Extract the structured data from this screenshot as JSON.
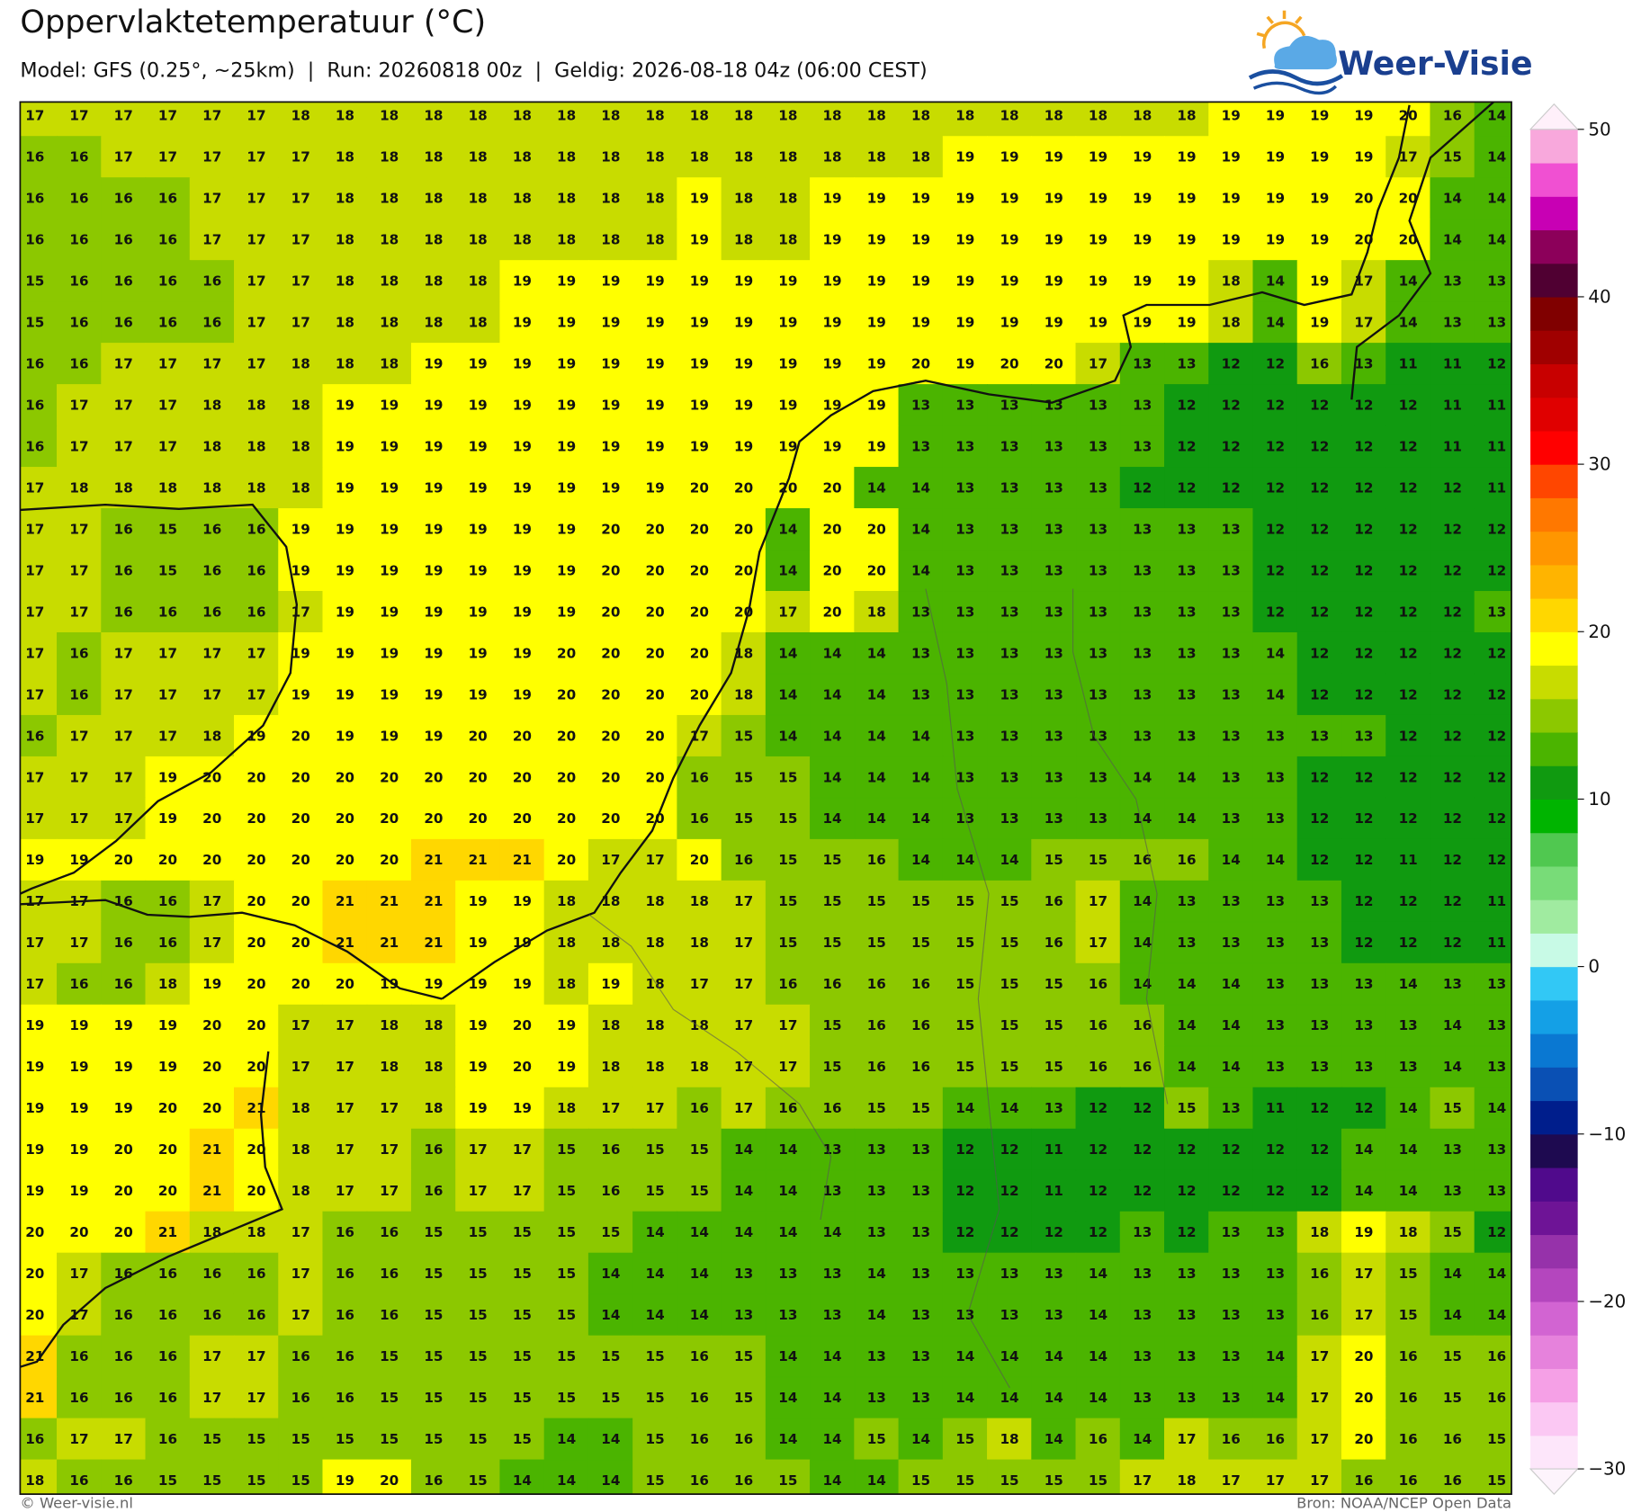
{
  "header": {
    "title": "Oppervlaktetemperatuur (°C)",
    "subtitle": "Model: GFS (0.25°, ~25km)  |  Run: 20260818 00z  |  Geldig: 2026-08-18 04z (06:00 CEST)",
    "logo": "Weer-Visie"
  },
  "map": {
    "rows": [
      [
        17,
        17,
        17,
        17,
        17,
        17,
        18,
        18,
        18,
        18,
        18,
        18,
        18,
        18,
        18,
        18,
        18,
        18,
        18,
        18,
        18,
        18,
        18,
        18,
        18,
        18,
        18,
        19,
        19,
        19,
        19,
        20,
        16,
        14
      ],
      [
        16,
        16,
        17,
        17,
        17,
        17,
        17,
        18,
        18,
        18,
        18,
        18,
        18,
        18,
        18,
        18,
        18,
        18,
        18,
        18,
        18,
        19,
        19,
        19,
        19,
        19,
        19,
        19,
        19,
        19,
        19,
        17,
        15,
        14
      ],
      [
        16,
        16,
        16,
        16,
        17,
        17,
        17,
        18,
        18,
        18,
        18,
        18,
        18,
        18,
        18,
        19,
        18,
        18,
        19,
        19,
        19,
        19,
        19,
        19,
        19,
        19,
        19,
        19,
        19,
        19,
        20,
        20,
        14,
        14
      ],
      [
        16,
        16,
        16,
        16,
        17,
        17,
        17,
        18,
        18,
        18,
        18,
        18,
        18,
        18,
        18,
        19,
        18,
        18,
        19,
        19,
        19,
        19,
        19,
        19,
        19,
        19,
        19,
        19,
        19,
        19,
        20,
        20,
        14,
        14
      ],
      [
        15,
        16,
        16,
        16,
        16,
        17,
        17,
        18,
        18,
        18,
        18,
        19,
        19,
        19,
        19,
        19,
        19,
        19,
        19,
        19,
        19,
        19,
        19,
        19,
        19,
        19,
        19,
        18,
        14,
        19,
        17,
        14,
        13,
        13
      ],
      [
        15,
        16,
        16,
        16,
        16,
        17,
        17,
        18,
        18,
        18,
        18,
        19,
        19,
        19,
        19,
        19,
        19,
        19,
        19,
        19,
        19,
        19,
        19,
        19,
        19,
        19,
        19,
        18,
        14,
        19,
        17,
        14,
        13,
        13
      ],
      [
        16,
        16,
        17,
        17,
        17,
        17,
        18,
        18,
        18,
        19,
        19,
        19,
        19,
        19,
        19,
        19,
        19,
        19,
        19,
        19,
        20,
        19,
        20,
        20,
        17,
        13,
        13,
        12,
        12,
        16,
        13,
        11,
        11,
        12
      ],
      [
        16,
        17,
        17,
        17,
        18,
        18,
        18,
        19,
        19,
        19,
        19,
        19,
        19,
        19,
        19,
        19,
        19,
        19,
        19,
        19,
        13,
        13,
        13,
        13,
        13,
        13,
        12,
        12,
        12,
        12,
        12,
        12,
        11,
        11
      ],
      [
        16,
        17,
        17,
        17,
        18,
        18,
        18,
        19,
        19,
        19,
        19,
        19,
        19,
        19,
        19,
        19,
        19,
        19,
        19,
        19,
        13,
        13,
        13,
        13,
        13,
        13,
        12,
        12,
        12,
        12,
        12,
        12,
        11,
        11
      ],
      [
        17,
        18,
        18,
        18,
        18,
        18,
        18,
        19,
        19,
        19,
        19,
        19,
        19,
        19,
        19,
        20,
        20,
        20,
        20,
        14,
        14,
        13,
        13,
        13,
        13,
        12,
        12,
        12,
        12,
        12,
        12,
        12,
        12,
        11
      ],
      [
        17,
        17,
        16,
        15,
        16,
        16,
        19,
        19,
        19,
        19,
        19,
        19,
        19,
        20,
        20,
        20,
        20,
        14,
        20,
        20,
        14,
        13,
        13,
        13,
        13,
        13,
        13,
        13,
        12,
        12,
        12,
        12,
        12,
        12
      ],
      [
        17,
        17,
        16,
        15,
        16,
        16,
        19,
        19,
        19,
        19,
        19,
        19,
        19,
        20,
        20,
        20,
        20,
        14,
        20,
        20,
        14,
        13,
        13,
        13,
        13,
        13,
        13,
        13,
        12,
        12,
        12,
        12,
        12,
        12
      ],
      [
        17,
        17,
        16,
        16,
        16,
        16,
        17,
        19,
        19,
        19,
        19,
        19,
        19,
        20,
        20,
        20,
        20,
        17,
        20,
        18,
        13,
        13,
        13,
        13,
        13,
        13,
        13,
        13,
        12,
        12,
        12,
        12,
        12,
        13
      ],
      [
        17,
        16,
        17,
        17,
        17,
        17,
        19,
        19,
        19,
        19,
        19,
        19,
        20,
        20,
        20,
        20,
        18,
        14,
        14,
        14,
        13,
        13,
        13,
        13,
        13,
        13,
        13,
        13,
        14,
        12,
        12,
        12,
        12,
        12
      ],
      [
        17,
        16,
        17,
        17,
        17,
        17,
        19,
        19,
        19,
        19,
        19,
        19,
        20,
        20,
        20,
        20,
        18,
        14,
        14,
        14,
        13,
        13,
        13,
        13,
        13,
        13,
        13,
        13,
        14,
        12,
        12,
        12,
        12,
        12
      ],
      [
        16,
        17,
        17,
        17,
        18,
        19,
        20,
        19,
        19,
        19,
        20,
        20,
        20,
        20,
        20,
        17,
        15,
        14,
        14,
        14,
        14,
        13,
        13,
        13,
        13,
        13,
        13,
        13,
        13,
        13,
        13,
        12,
        12,
        12
      ],
      [
        17,
        17,
        17,
        19,
        20,
        20,
        20,
        20,
        20,
        20,
        20,
        20,
        20,
        20,
        20,
        16,
        15,
        15,
        14,
        14,
        14,
        13,
        13,
        13,
        13,
        14,
        14,
        13,
        13,
        12,
        12,
        12,
        12,
        12
      ],
      [
        17,
        17,
        17,
        19,
        20,
        20,
        20,
        20,
        20,
        20,
        20,
        20,
        20,
        20,
        20,
        16,
        15,
        15,
        14,
        14,
        14,
        13,
        13,
        13,
        13,
        14,
        14,
        13,
        13,
        12,
        12,
        12,
        12,
        12
      ],
      [
        19,
        19,
        20,
        20,
        20,
        20,
        20,
        20,
        20,
        21,
        21,
        21,
        20,
        17,
        17,
        20,
        16,
        15,
        15,
        16,
        14,
        14,
        14,
        15,
        15,
        16,
        16,
        14,
        14,
        12,
        12,
        11,
        12,
        12
      ],
      [
        17,
        17,
        16,
        16,
        17,
        20,
        20,
        21,
        21,
        21,
        19,
        19,
        18,
        18,
        18,
        18,
        17,
        15,
        15,
        15,
        15,
        15,
        15,
        16,
        17,
        14,
        13,
        13,
        13,
        13,
        12,
        12,
        12,
        11
      ],
      [
        17,
        17,
        16,
        16,
        17,
        20,
        20,
        21,
        21,
        21,
        19,
        19,
        18,
        18,
        18,
        18,
        17,
        15,
        15,
        15,
        15,
        15,
        15,
        16,
        17,
        14,
        13,
        13,
        13,
        13,
        12,
        12,
        12,
        11
      ],
      [
        17,
        16,
        16,
        18,
        19,
        20,
        20,
        20,
        19,
        19,
        19,
        19,
        18,
        19,
        18,
        17,
        17,
        16,
        16,
        16,
        16,
        15,
        15,
        15,
        16,
        14,
        14,
        14,
        13,
        13,
        13,
        14,
        13,
        13
      ],
      [
        19,
        19,
        19,
        19,
        20,
        20,
        17,
        17,
        18,
        18,
        19,
        20,
        19,
        18,
        18,
        18,
        17,
        17,
        15,
        16,
        16,
        15,
        15,
        15,
        16,
        16,
        14,
        14,
        13,
        13,
        13,
        13,
        14,
        13
      ],
      [
        19,
        19,
        19,
        19,
        20,
        20,
        17,
        17,
        18,
        18,
        19,
        20,
        19,
        18,
        18,
        18,
        17,
        17,
        15,
        16,
        16,
        15,
        15,
        15,
        16,
        16,
        14,
        14,
        13,
        13,
        13,
        13,
        14,
        13
      ],
      [
        19,
        19,
        19,
        20,
        20,
        21,
        18,
        17,
        17,
        18,
        19,
        19,
        18,
        17,
        17,
        16,
        17,
        16,
        16,
        15,
        15,
        14,
        14,
        13,
        12,
        12,
        15,
        13,
        11,
        12,
        12,
        14,
        15,
        14
      ],
      [
        19,
        19,
        20,
        20,
        21,
        20,
        18,
        17,
        17,
        16,
        17,
        17,
        15,
        16,
        15,
        15,
        14,
        14,
        13,
        13,
        13,
        12,
        12,
        11,
        12,
        12,
        12,
        12,
        12,
        12,
        14,
        14,
        13,
        13
      ],
      [
        19,
        19,
        20,
        20,
        21,
        20,
        18,
        17,
        17,
        16,
        17,
        17,
        15,
        16,
        15,
        15,
        14,
        14,
        13,
        13,
        13,
        12,
        12,
        11,
        12,
        12,
        12,
        12,
        12,
        12,
        14,
        14,
        13,
        13
      ],
      [
        20,
        20,
        20,
        21,
        18,
        18,
        17,
        16,
        16,
        15,
        15,
        15,
        15,
        15,
        14,
        14,
        14,
        14,
        14,
        13,
        13,
        12,
        12,
        12,
        12,
        13,
        12,
        13,
        13,
        18,
        19,
        18,
        15,
        12
      ],
      [
        20,
        17,
        16,
        16,
        16,
        16,
        17,
        16,
        16,
        15,
        15,
        15,
        15,
        14,
        14,
        14,
        13,
        13,
        13,
        14,
        13,
        13,
        13,
        13,
        14,
        13,
        13,
        13,
        13,
        16,
        17,
        15,
        14,
        14
      ],
      [
        20,
        17,
        16,
        16,
        16,
        16,
        17,
        16,
        16,
        15,
        15,
        15,
        15,
        14,
        14,
        14,
        13,
        13,
        13,
        14,
        13,
        13,
        13,
        13,
        14,
        13,
        13,
        13,
        13,
        16,
        17,
        15,
        14,
        14
      ],
      [
        21,
        16,
        16,
        16,
        17,
        17,
        16,
        16,
        15,
        15,
        15,
        15,
        15,
        15,
        15,
        16,
        15,
        14,
        14,
        13,
        13,
        14,
        14,
        14,
        14,
        13,
        13,
        13,
        14,
        17,
        20,
        16,
        15,
        16
      ],
      [
        21,
        16,
        16,
        16,
        17,
        17,
        16,
        16,
        15,
        15,
        15,
        15,
        15,
        15,
        15,
        16,
        15,
        14,
        14,
        13,
        13,
        14,
        14,
        14,
        14,
        13,
        13,
        13,
        14,
        17,
        20,
        16,
        15,
        16
      ],
      [
        16,
        17,
        17,
        16,
        15,
        15,
        15,
        15,
        15,
        15,
        15,
        15,
        14,
        14,
        15,
        16,
        16,
        14,
        14,
        15,
        14,
        15,
        18,
        14,
        16,
        14,
        17,
        16,
        16,
        17,
        20,
        16,
        16,
        15
      ],
      [
        18,
        16,
        16,
        15,
        15,
        15,
        15,
        19,
        20,
        16,
        15,
        14,
        14,
        14,
        15,
        16,
        16,
        15,
        14,
        14,
        15,
        15,
        15,
        15,
        15,
        17,
        18,
        17,
        17,
        17,
        16,
        16,
        16,
        15
      ]
    ]
  },
  "colorbar": {
    "lim": [
      -30,
      50
    ],
    "ticks": [
      50,
      40,
      30,
      20,
      10,
      0,
      {
        "value": -10,
        "label": "−10"
      },
      {
        "value": -20,
        "label": "−20"
      },
      {
        "value": -30,
        "label": "−30"
      }
    ],
    "colors": [
      "#fde6fa",
      "#fbc8f3",
      "#f5a0e6",
      "#e682dc",
      "#d264d2",
      "#b446be",
      "#9632aa",
      "#6e1496",
      "#500a8c",
      "#1e0a50",
      "#001e8c",
      "#0a50b4",
      "#0a78d2",
      "#14a0e6",
      "#32c8f5",
      "#c8fae6",
      "#a0eba0",
      "#78dc78",
      "#50c850",
      "#00b400",
      "#109a10",
      "#4bb400",
      "#8cc800",
      "#c8dc00",
      "#ffff00",
      "#ffd700",
      "#ffb400",
      "#ff9600",
      "#ff7800",
      "#ff4600",
      "#ff0000",
      "#e00000",
      "#c80000",
      "#a00000",
      "#800000",
      "#500032",
      "#8c005a",
      "#c800b4",
      "#f050d2",
      "#f8a8dc"
    ]
  },
  "footer": {
    "left": "© Weer-visie.nl",
    "right": "Bron: NOAA/NCEP Open Data"
  }
}
